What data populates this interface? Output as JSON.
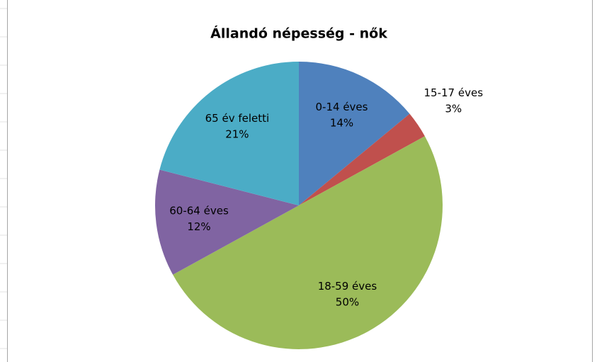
{
  "chart_data": {
    "type": "pie",
    "title": "Állandó népesség - nők",
    "categories": [
      "0-14 éves",
      "15-17 éves",
      "18-59 éves",
      "60-64 éves",
      "65 év feletti"
    ],
    "values": [
      14,
      3,
      50,
      12,
      21
    ],
    "value_labels": [
      "14%",
      "3%",
      "50%",
      "12%",
      "21%"
    ],
    "colors": [
      "#4f81bd",
      "#c0504d",
      "#9bbb59",
      "#8064a2",
      "#4bacc6"
    ]
  }
}
